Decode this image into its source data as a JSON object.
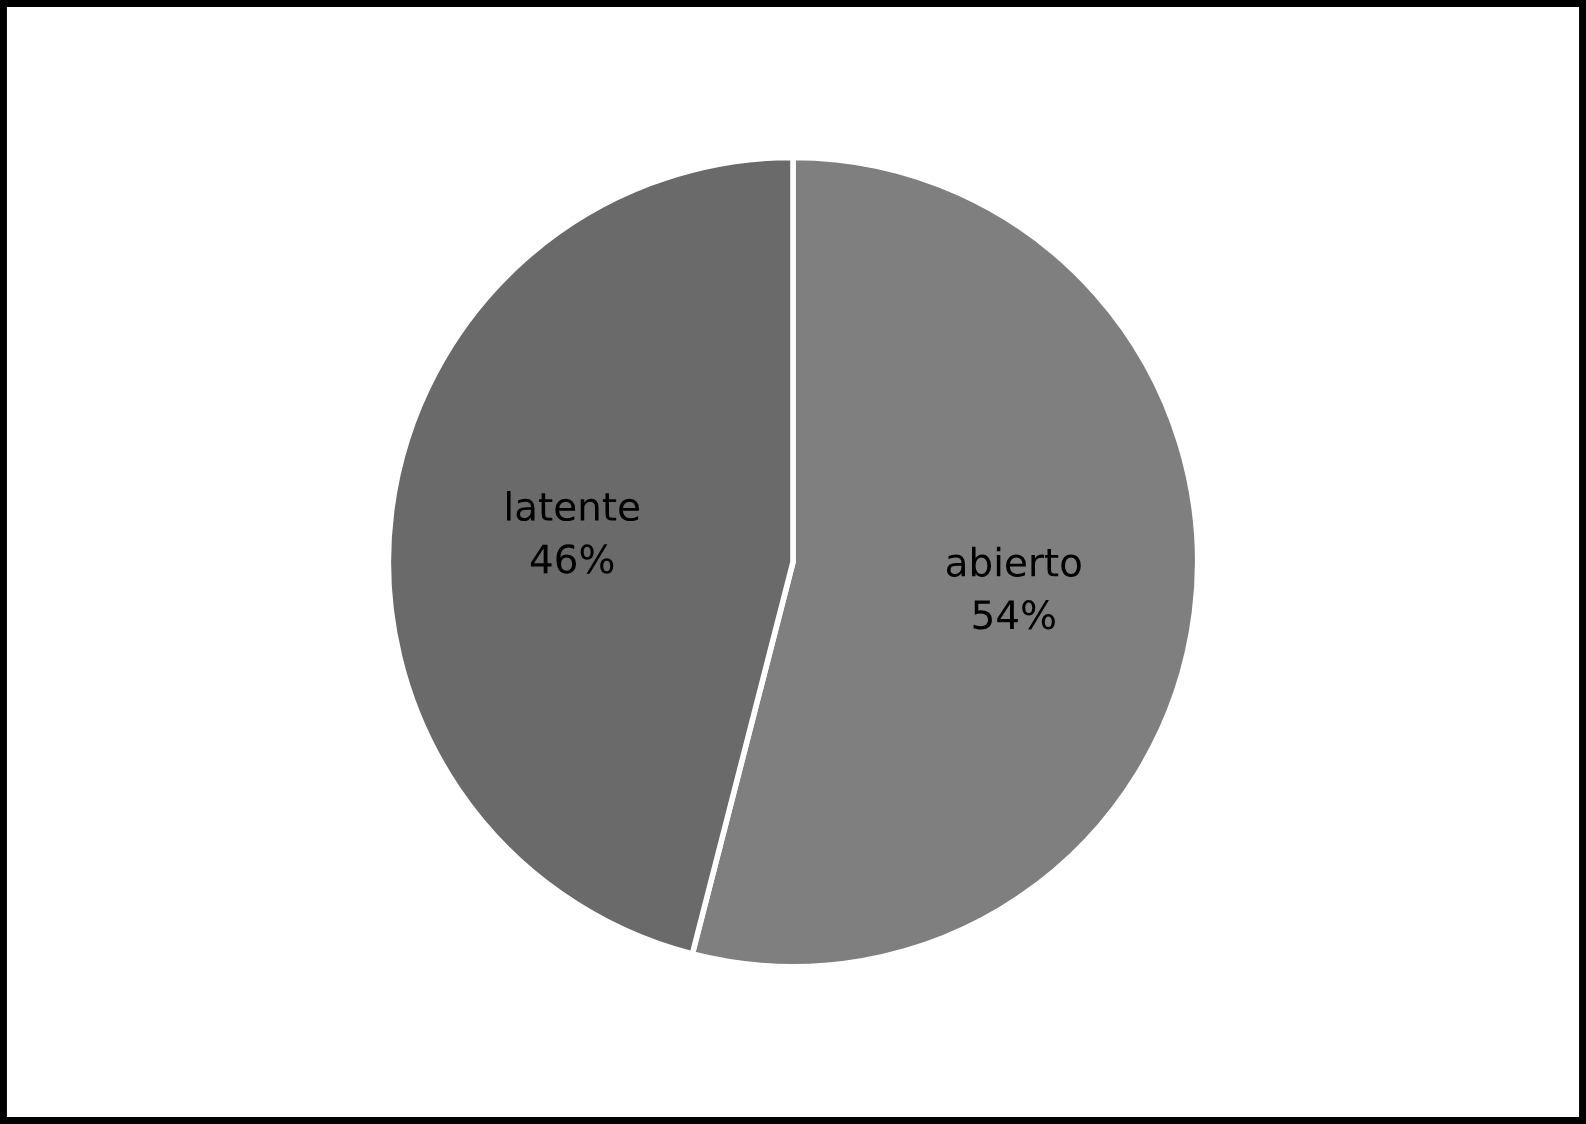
{
  "chart_data": {
    "type": "pie",
    "categories": [
      "abierto",
      "latente"
    ],
    "values": [
      54,
      46
    ],
    "colors": [
      "#7f7f7f",
      "#6a6a6a"
    ],
    "value_labels": [
      "54%",
      "46%"
    ]
  }
}
